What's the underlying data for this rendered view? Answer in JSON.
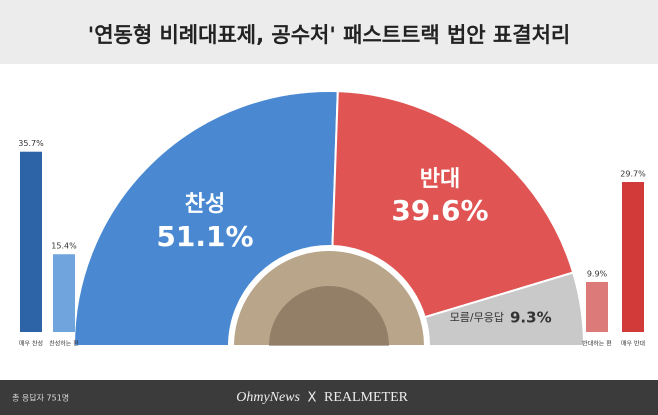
{
  "chart_data": [
    {
      "type": "semi-donut",
      "title": "'연동형 비례대표제, 공수처' 패스트트랙 법안 표결처리",
      "categories": [
        "찬성",
        "반대",
        "모름/무응답"
      ],
      "values": [
        51.1,
        39.6,
        9.3
      ],
      "value_labels": [
        "51.1%",
        "39.6%",
        "9.3%"
      ],
      "colors": [
        "#4a89d2",
        "#e05454",
        "#c9c9c9"
      ]
    },
    {
      "type": "bar",
      "categories": [
        "매우 찬성",
        "찬성하는 편",
        "반대하는 편",
        "매우 반대"
      ],
      "values": [
        35.7,
        15.4,
        9.9,
        29.7
      ],
      "value_labels": [
        "35.7%",
        "15.4%",
        "9.9%",
        "29.7%"
      ],
      "colors": [
        "#2d64a8",
        "#6fa5dc",
        "#dc7a7a",
        "#d23a3a"
      ]
    }
  ],
  "footer": {
    "note": "총 응답자 751명",
    "brand1": "OhmyNews",
    "sep": "X",
    "brand2": "REALMETER"
  }
}
